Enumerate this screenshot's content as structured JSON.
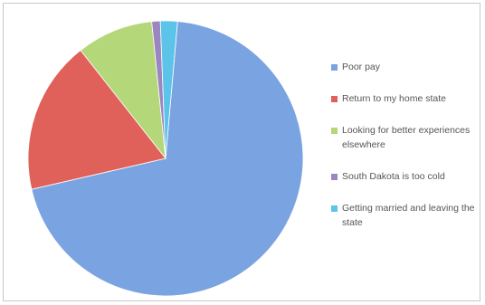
{
  "chart_data": {
    "type": "pie",
    "title": "",
    "slices": [
      {
        "label": "Poor pay",
        "value": 70,
        "color": "#7aa3e2"
      },
      {
        "label": "Return to my home state",
        "value": 18,
        "color": "#e0605a"
      },
      {
        "label": "Looking for better experiences elsewhere",
        "value": 9,
        "color": "#b4d77a"
      },
      {
        "label": "South Dakota is too cold",
        "value": 1,
        "color": "#9c86c2"
      },
      {
        "label": "Getting married and leaving the state",
        "value": 2,
        "color": "#5cc4e8"
      }
    ],
    "legend_position": "right"
  },
  "legend": {
    "entries": [
      {
        "label": "Poor pay"
      },
      {
        "label": "Return to my home state"
      },
      {
        "label": "Looking for better experiences elsewhere"
      },
      {
        "label": "South Dakota is too cold"
      },
      {
        "label": "Getting married and leaving the state"
      }
    ]
  }
}
